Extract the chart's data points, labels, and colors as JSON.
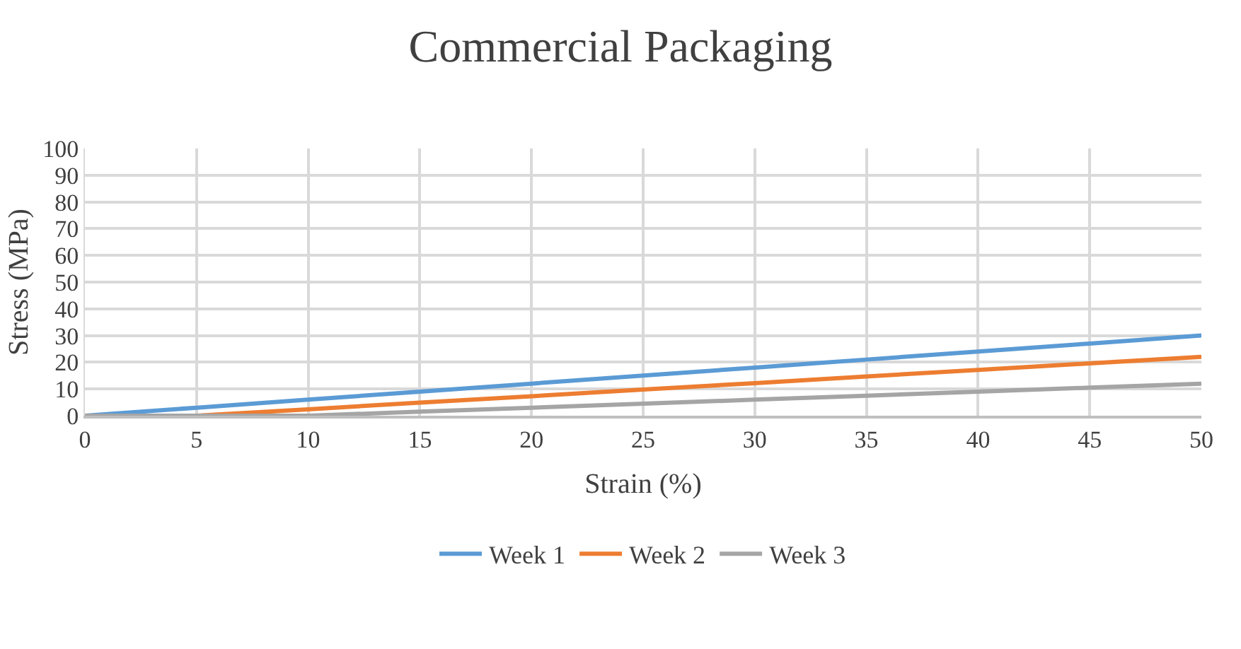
{
  "chart_data": {
    "type": "line",
    "title": "Commercial Packaging",
    "xlabel": "Strain (%)",
    "ylabel": "Stress (MPa)",
    "x": [
      0,
      5,
      10,
      15,
      20,
      25,
      30,
      35,
      40,
      45,
      50
    ],
    "series": [
      {
        "name": "Week 1",
        "color": "#5b9bd5",
        "values": [
          0,
          3,
          6,
          9,
          12,
          15,
          18,
          21,
          24,
          27,
          30
        ]
      },
      {
        "name": "Week 2",
        "color": "#ed7d31",
        "values": [
          0,
          0,
          2.4,
          4.9,
          7.3,
          9.8,
          12.2,
          14.7,
          17.1,
          19.6,
          22
        ]
      },
      {
        "name": "Week 3",
        "color": "#a5a5a5",
        "values": [
          0,
          0,
          0,
          1.5,
          3,
          4.5,
          6,
          7.5,
          9,
          10.5,
          12
        ]
      }
    ],
    "xlim": [
      0,
      50
    ],
    "xticks": [
      0,
      5,
      10,
      15,
      20,
      25,
      30,
      35,
      40,
      45,
      50
    ],
    "ylim": [
      0,
      100
    ],
    "yticks": [
      0,
      10,
      20,
      30,
      40,
      50,
      60,
      70,
      80,
      90,
      100
    ],
    "grid": true,
    "legend": "bottom",
    "marker": "none",
    "line_style": "solid"
  }
}
